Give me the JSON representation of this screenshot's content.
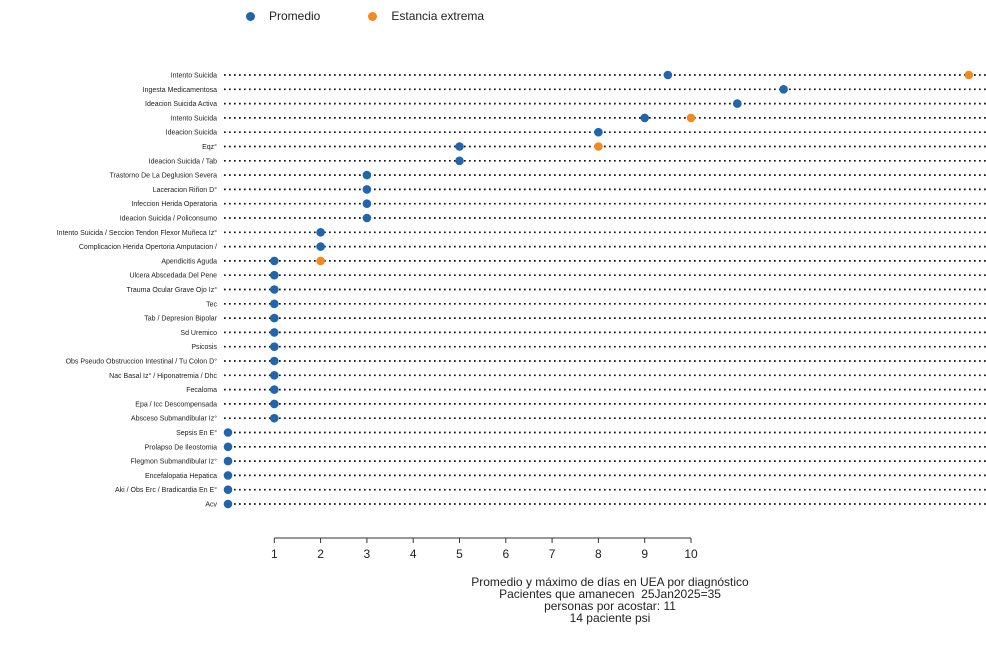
{
  "legend": [
    {
      "label": "Promedio",
      "color": "#2166ac"
    },
    {
      "label": "Estancia extrema",
      "color": "#f4891f"
    }
  ],
  "caption": [
    "Promedio y máximo de días en UEA por diagnóstico",
    "Pacientes que amanecen  25Jan2025=35",
    "personas por acostar: 11",
    "14 paciente psi"
  ],
  "chart_data": {
    "type": "scatter",
    "title": "",
    "xlabel": "",
    "ylabel": "",
    "x_ticks": [
      1,
      2,
      3,
      4,
      5,
      6,
      7,
      8,
      9,
      10
    ],
    "xlim": [
      0,
      16.5
    ],
    "grid": "dotted horizontal lines",
    "legend_position": "top-left",
    "categories": [
      "Intento Suicida",
      "Ingesta Medicamentosa",
      "Ideacion Suicida Activa",
      "Intento Suicida ",
      "Ideacion Suicida",
      "Eqz°",
      "Ideacion Suicida / Tab",
      "Trastorno De La Deglusion Severa",
      "Laceracion Riñon D°",
      "Infeccion Herida Operatoria",
      "Ideacion Suicida / Policonsumo",
      "Intento Suicida / Seccion Tendon Flexor Muñeca Iz°",
      "Complicacion Herida Opertoria Amputacion /",
      "Apendicitis Aguda",
      "Ulcera Abscedada Del Pene",
      "Trauma Ocular Grave Ojo Iz°",
      "Tec",
      "Tab / Depresion Bipolar",
      "Sd Uremico",
      "Psicosis",
      "Obs Pseudo Obstruccion Intestinal / Tu Colon D°",
      "Nac Basal Iz° / Hiponatremia / Dhc",
      "Fecaloma",
      "Epa / Icc Descompensada",
      "Absceso Submandibular Iz°",
      "Sepsis En E°",
      "Prolapso De Ileostomia",
      "Flegmon Submandibular Iz°",
      "Encefalopatia Hepatica",
      "Aki / Obs Erc / Bradicardia En E°",
      "Acv"
    ],
    "series": [
      {
        "name": "Promedio",
        "color": "#2166ac",
        "values": [
          9.5,
          12,
          11,
          9,
          8,
          5,
          5,
          3,
          3,
          3,
          3,
          2,
          2,
          1,
          1,
          1,
          1,
          1,
          1,
          1,
          1,
          1,
          1,
          1,
          1,
          0,
          0,
          0,
          0,
          0,
          0
        ]
      },
      {
        "name": "Estancia extrema",
        "color": "#f4891f",
        "values": [
          16,
          null,
          null,
          10,
          null,
          8,
          null,
          null,
          null,
          null,
          null,
          null,
          null,
          2,
          null,
          null,
          null,
          null,
          null,
          null,
          null,
          null,
          null,
          null,
          null,
          null,
          null,
          null,
          null,
          null,
          null
        ]
      }
    ]
  }
}
